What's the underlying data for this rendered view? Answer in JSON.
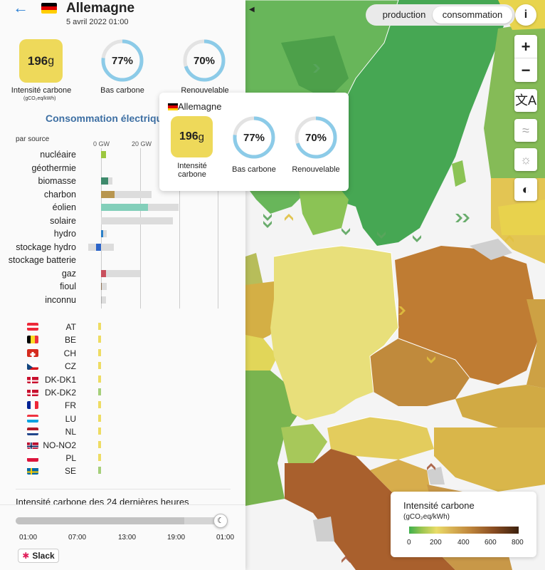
{
  "zone": {
    "name": "Allemagne",
    "datetime": "5 avril 2022 01:00",
    "carbon_intensity": "196",
    "carbon_unit": "g",
    "carbon_label": "Intensité carbone",
    "carbon_unit_label": "(gCO₂eq/kWh)",
    "low_carbon_pct": "77%",
    "low_carbon_value": 0.77,
    "low_carbon_label": "Bas carbone",
    "renewable_pct": "70%",
    "renewable_value": 0.7,
    "renewable_label": "Renouvelable"
  },
  "consumption": {
    "title": "Consommation électrique",
    "by_source_label": "par source",
    "axis_ticks": [
      "0 GW",
      "20 GW"
    ],
    "sources": [
      {
        "name": "nucléaire",
        "value_gw": 2.7,
        "capacity_gw": 2.7,
        "color": "#9cc73f"
      },
      {
        "name": "géothermie",
        "value_gw": 0,
        "capacity_gw": 0,
        "color": "#cccccc"
      },
      {
        "name": "biomasse",
        "value_gw": 3.5,
        "capacity_gw": 6,
        "color": "#3e8a6c"
      },
      {
        "name": "charbon",
        "value_gw": 7,
        "capacity_gw": 26,
        "color": "#b8964f"
      },
      {
        "name": "éolien",
        "value_gw": 24,
        "capacity_gw": 40,
        "color": "#83cfba"
      },
      {
        "name": "solaire",
        "value_gw": 0,
        "capacity_gw": 37,
        "color": "#f6d04c"
      },
      {
        "name": "hydro",
        "value_gw": 1,
        "capacity_gw": 3,
        "color": "#2c80c8"
      },
      {
        "name": "stockage hydro",
        "value_gw": -2.5,
        "capacity_gw": 6.5,
        "capacity_neg_gw": -6.5,
        "color": "#2c64c8"
      },
      {
        "name": "stockage batterie",
        "value_gw": 0,
        "capacity_gw": 0,
        "color": "#cccccc"
      },
      {
        "name": "gaz",
        "value_gw": 2.5,
        "capacity_gw": 20,
        "color": "#c8505d"
      },
      {
        "name": "fioul",
        "value_gw": 0.4,
        "capacity_gw": 3,
        "color": "#8d6f52"
      },
      {
        "name": "inconnu",
        "value_gw": 0.2,
        "capacity_gw": 2.5,
        "color": "#aaaaaa"
      }
    ],
    "countries": [
      {
        "code": "AT",
        "flag": "at",
        "color": "#eedc63"
      },
      {
        "code": "BE",
        "flag": "be",
        "color": "#eedc63"
      },
      {
        "code": "CH",
        "flag": "ch",
        "color": "#eedc63"
      },
      {
        "code": "CZ",
        "flag": "cz",
        "color": "#eedc63"
      },
      {
        "code": "DK-DK1",
        "flag": "dk",
        "color": "#eedc63"
      },
      {
        "code": "DK-DK2",
        "flag": "dk",
        "color": "#a5cf7a"
      },
      {
        "code": "FR",
        "flag": "fr",
        "color": "#eedc63"
      },
      {
        "code": "LU",
        "flag": "lu",
        "color": "#eedc63"
      },
      {
        "code": "NL",
        "flag": "nl",
        "color": "#eedc63"
      },
      {
        "code": "NO-NO2",
        "flag": "no",
        "color": "#eedc63"
      },
      {
        "code": "PL",
        "flag": "pl",
        "color": "#eedc63"
      },
      {
        "code": "SE",
        "flag": "se",
        "color": "#a5cf7a"
      }
    ]
  },
  "history": {
    "title": "Intensité carbone des 24 dernières heures",
    "time_labels": [
      "01:00",
      "07:00",
      "13:00",
      "19:00",
      "01:00"
    ],
    "slider_position": 1.0
  },
  "slack_label": "Slack",
  "toggle": {
    "production": "production",
    "consumption": "consommation",
    "active": "consumption"
  },
  "info_label": "i",
  "tooltip": {
    "zone": "Allemagne",
    "carbon_intensity": "196",
    "carbon_unit": "g",
    "carbon_label": "Intensité carbone",
    "low_carbon_pct": "77%",
    "low_carbon_label": "Bas carbone",
    "renewable_pct": "70%",
    "renewable_label": "Renouvelable"
  },
  "legend": {
    "title": "Intensité carbone",
    "unit": "(gCO₂eq/kWh)",
    "ticks": [
      "0",
      "200",
      "400",
      "600",
      "800"
    ]
  },
  "colors": {
    "accent": "#2a7fd4",
    "ci_yellow": "#eed95a",
    "ring": "#8ccbe8"
  }
}
